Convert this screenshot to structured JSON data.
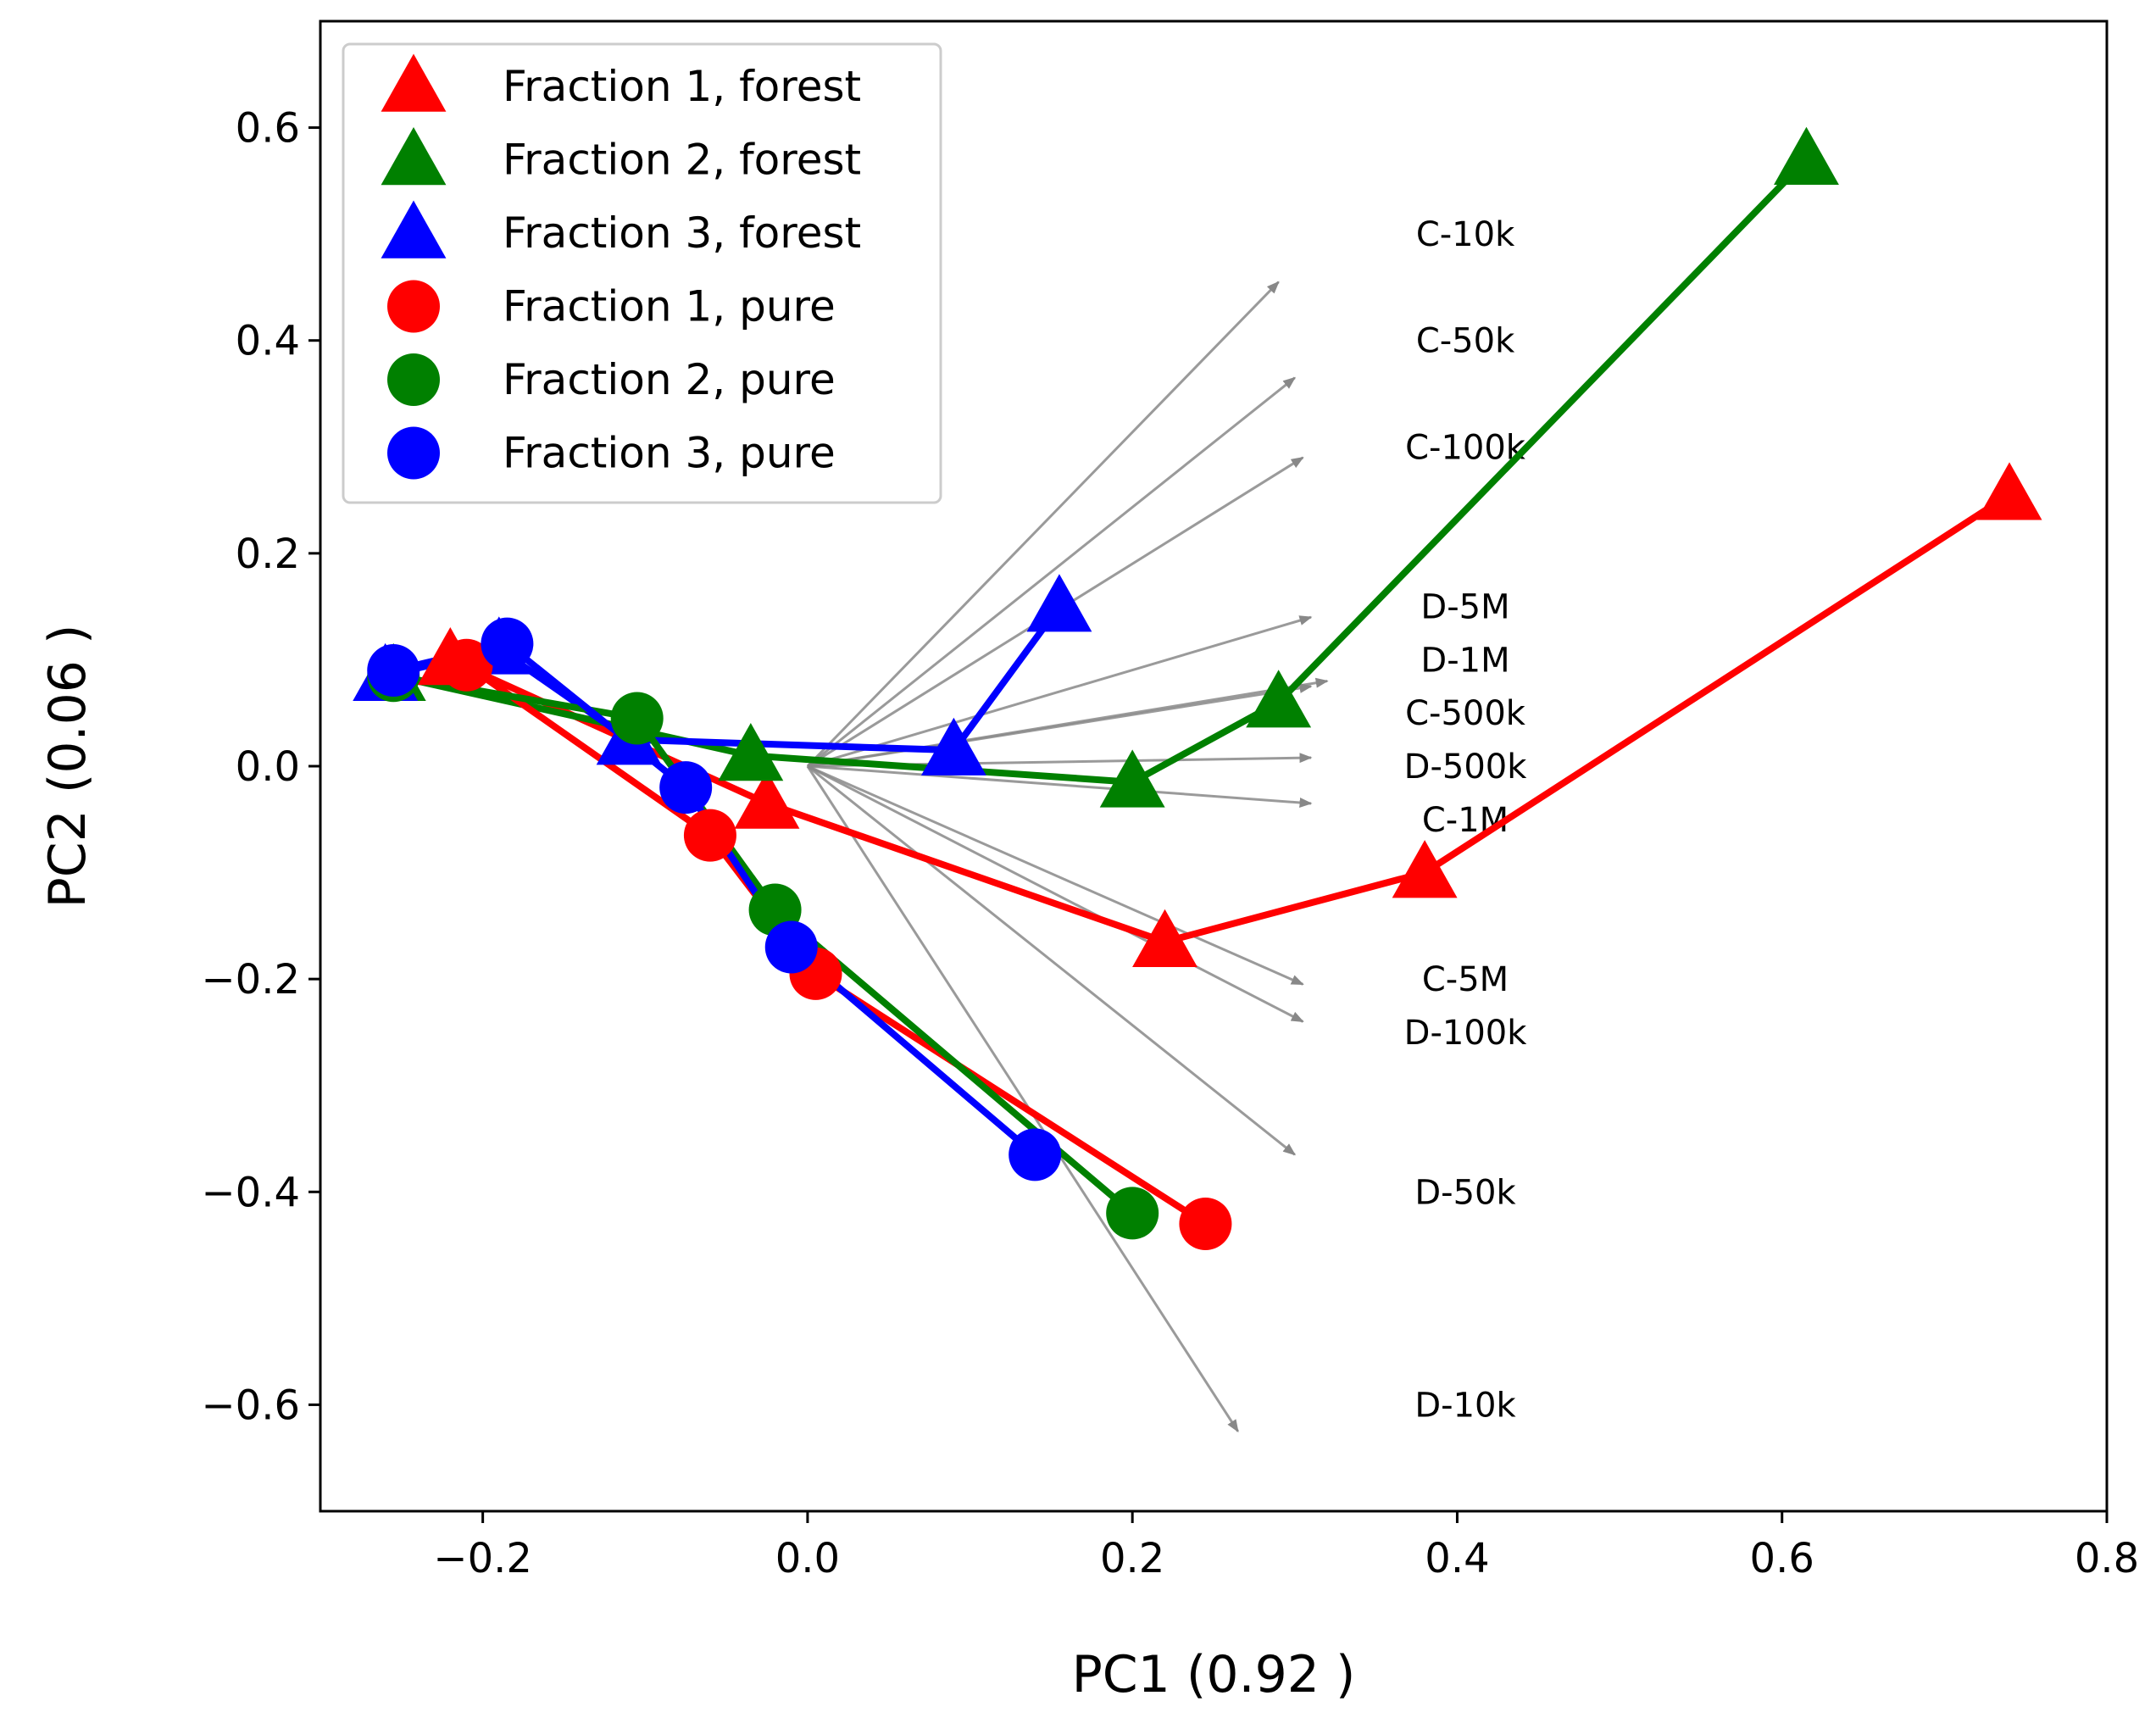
{
  "chart_data": {
    "type": "scatter",
    "xlabel": "PC1 (0.92 )",
    "ylabel": "PC2 (0.06 )",
    "xlim": [
      -0.3,
      0.8
    ],
    "ylim": [
      -0.7,
      0.7
    ],
    "x_ticks": [
      {
        "value": -0.2,
        "label": "−0.2"
      },
      {
        "value": 0.0,
        "label": "0.0"
      },
      {
        "value": 0.2,
        "label": "0.2"
      },
      {
        "value": 0.4,
        "label": "0.4"
      },
      {
        "value": 0.6,
        "label": "0.6"
      },
      {
        "value": 0.8,
        "label": "0.8"
      }
    ],
    "y_ticks": [
      {
        "value": -0.6,
        "label": "−0.6"
      },
      {
        "value": -0.4,
        "label": "−0.4"
      },
      {
        "value": -0.2,
        "label": "−0.2"
      },
      {
        "value": 0.0,
        "label": "0.0"
      },
      {
        "value": 0.2,
        "label": "0.2"
      },
      {
        "value": 0.4,
        "label": "0.4"
      },
      {
        "value": 0.6,
        "label": "0.6"
      }
    ],
    "grid": false,
    "legend_position": "top-left",
    "series": [
      {
        "name": "Fraction 1, forest",
        "color": "#ff0000",
        "marker": "triangle",
        "points": [
          [
            -0.22,
            0.1
          ],
          [
            -0.025,
            -0.035
          ],
          [
            0.22,
            -0.165
          ],
          [
            0.38,
            -0.1
          ],
          [
            0.74,
            0.255
          ]
        ]
      },
      {
        "name": "Fraction 2, forest",
        "color": "#008000",
        "marker": "triangle",
        "points": [
          [
            -0.255,
            0.085
          ],
          [
            -0.035,
            0.01
          ],
          [
            0.2,
            -0.015
          ],
          [
            0.29,
            0.06
          ],
          [
            0.615,
            0.57
          ]
        ]
      },
      {
        "name": "Fraction 3, forest",
        "color": "#0000ff",
        "marker": "triangle",
        "points": [
          [
            -0.26,
            0.085
          ],
          [
            -0.19,
            0.11
          ],
          [
            -0.11,
            0.025
          ],
          [
            0.09,
            0.015
          ],
          [
            0.155,
            0.15
          ]
        ]
      },
      {
        "name": "Fraction 1, pure",
        "color": "#ff0000",
        "marker": "circle",
        "points": [
          [
            -0.21,
            0.095
          ],
          [
            -0.06,
            -0.065
          ],
          [
            0.005,
            -0.195
          ],
          [
            0.245,
            -0.43
          ]
        ]
      },
      {
        "name": "Fraction 2, pure",
        "color": "#008000",
        "marker": "circle",
        "points": [
          [
            -0.255,
            0.085
          ],
          [
            -0.105,
            0.045
          ],
          [
            -0.02,
            -0.135
          ],
          [
            0.2,
            -0.42
          ]
        ]
      },
      {
        "name": "Fraction 3, pure",
        "color": "#0000ff",
        "marker": "circle",
        "points": [
          [
            -0.255,
            0.09
          ],
          [
            -0.185,
            0.115
          ],
          [
            -0.075,
            -0.02
          ],
          [
            -0.01,
            -0.17
          ],
          [
            0.14,
            -0.365
          ]
        ]
      }
    ],
    "loadings": [
      {
        "label": "C-10k",
        "arrow_end": [
          0.29,
          0.455
        ],
        "label_pos": [
          0.405,
          0.5
        ]
      },
      {
        "label": "C-50k",
        "arrow_end": [
          0.3,
          0.365
        ],
        "label_pos": [
          0.405,
          0.4
        ]
      },
      {
        "label": "C-100k",
        "arrow_end": [
          0.305,
          0.29
        ],
        "label_pos": [
          0.405,
          0.3
        ]
      },
      {
        "label": "D-5M",
        "arrow_end": [
          0.31,
          0.14
        ],
        "label_pos": [
          0.405,
          0.15
        ]
      },
      {
        "label": "D-1M",
        "arrow_end": [
          0.31,
          0.075
        ],
        "label_pos": [
          0.405,
          0.1
        ]
      },
      {
        "label": "C-500k",
        "arrow_end": [
          0.32,
          0.08
        ],
        "label_pos": [
          0.405,
          0.05
        ]
      },
      {
        "label": "D-500k",
        "arrow_end": [
          0.31,
          0.008
        ],
        "label_pos": [
          0.405,
          0.0
        ]
      },
      {
        "label": "C-1M",
        "arrow_end": [
          0.31,
          -0.035
        ],
        "label_pos": [
          0.405,
          -0.05
        ]
      },
      {
        "label": "C-5M",
        "arrow_end": [
          0.305,
          -0.205
        ],
        "label_pos": [
          0.405,
          -0.2
        ]
      },
      {
        "label": "D-100k",
        "arrow_end": [
          0.305,
          -0.24
        ],
        "label_pos": [
          0.405,
          -0.25
        ]
      },
      {
        "label": "D-50k",
        "arrow_end": [
          0.3,
          -0.365
        ],
        "label_pos": [
          0.405,
          -0.4
        ]
      },
      {
        "label": "D-10k",
        "arrow_end": [
          0.265,
          -0.625
        ],
        "label_pos": [
          0.405,
          -0.6
        ]
      }
    ]
  }
}
